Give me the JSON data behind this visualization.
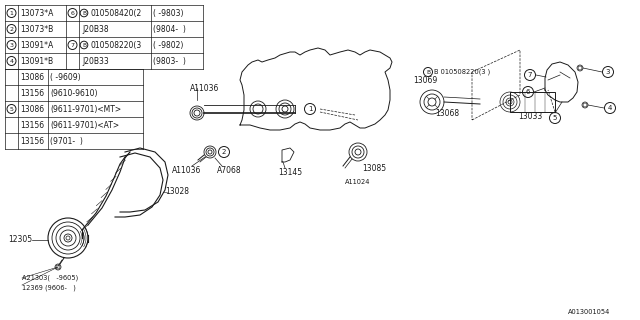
{
  "bg_color": "#ffffff",
  "line_color": "#1a1a1a",
  "table": {
    "rows": [
      [
        "1",
        "13073*A",
        "6",
        "B 010508420(2",
        "( -9803)"
      ],
      [
        "2",
        "13073*B",
        "",
        "J20B38",
        "(9804-  )"
      ],
      [
        "3",
        "13091*A",
        "7",
        "B 010508220(3",
        "( -9802)"
      ],
      [
        "4",
        "13091*B",
        "",
        "J20B33",
        "(9803-  )"
      ]
    ],
    "part5_rows": [
      [
        "",
        "13086",
        "( -9609)"
      ],
      [
        "",
        "13156",
        "(9610-9610)"
      ],
      [
        "5",
        "13086",
        "(9611-9701)<MT>"
      ],
      [
        "",
        "13156",
        "(9611-9701)<AT>"
      ],
      [
        "",
        "13156",
        "(9701-  )"
      ]
    ]
  },
  "labels": {
    "A11036_top": "A11036",
    "A11036_bot": "A11036",
    "A7068": "A7068",
    "p13145": "13145",
    "p13085": "13085",
    "A11024": "A11024",
    "p13068": "13068",
    "p13069": "13069",
    "p13033": "13033",
    "p13028": "13028",
    "p12305": "12305",
    "A21303": "A21303(   -9605)",
    "p12369": "12369 (9606-   )",
    "bolt_bot": "B 010508220(3 )",
    "ref": "A013001054"
  }
}
